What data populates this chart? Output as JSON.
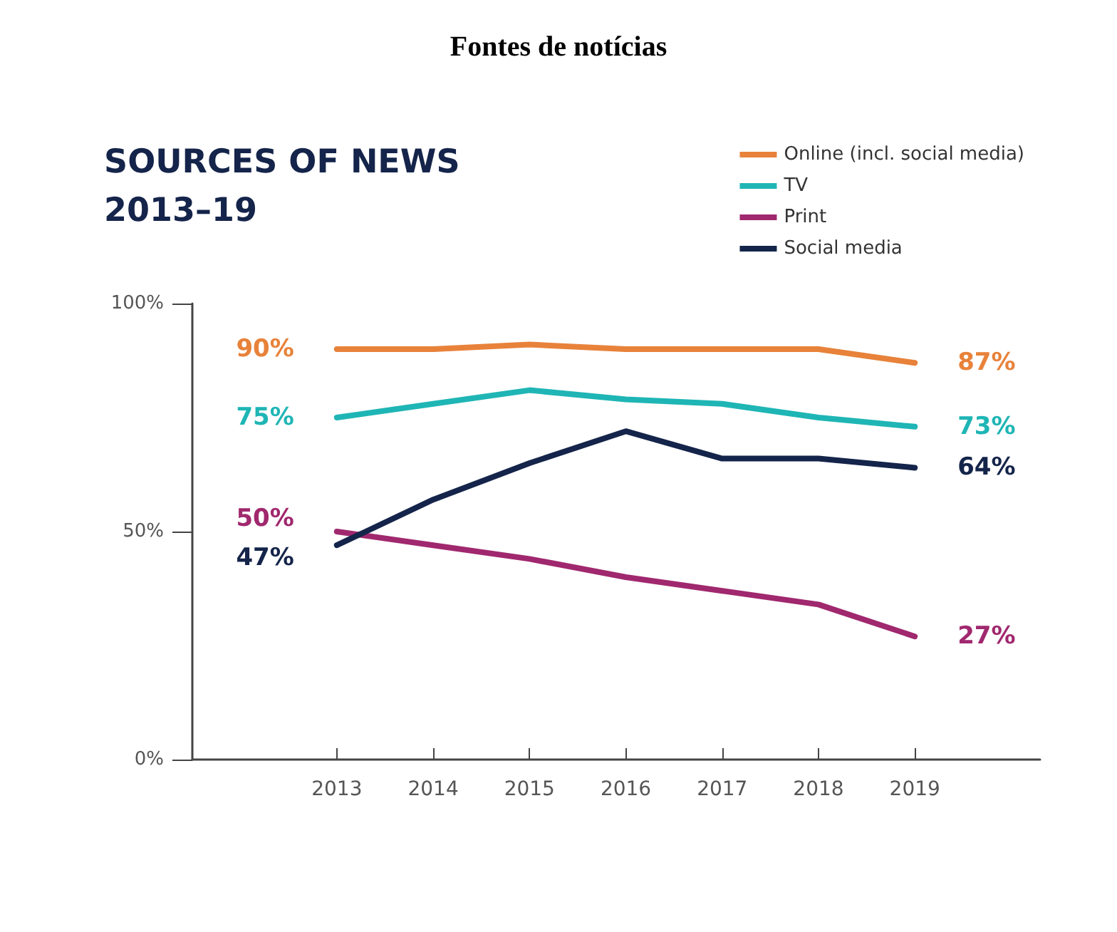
{
  "chart_data": {
    "type": "line",
    "title": "Fontes de notícias",
    "subtitle": "SOURCES OF NEWS\n2013–19",
    "categories": [
      "2013",
      "2014",
      "2015",
      "2016",
      "2017",
      "2018",
      "2019"
    ],
    "series": [
      {
        "name": "Online (incl. social media)",
        "color": "#e8823a",
        "values": [
          90,
          90,
          91,
          90,
          90,
          90,
          87
        ],
        "value_labels": [
          "90%",
          null,
          null,
          null,
          null,
          null,
          "87%"
        ]
      },
      {
        "name": "TV",
        "color": "#1fb5b5",
        "values": [
          75,
          78,
          81,
          79,
          78,
          75,
          73
        ],
        "value_labels": [
          "75%",
          null,
          null,
          null,
          null,
          null,
          "73%"
        ]
      },
      {
        "name": "Print",
        "color": "#a0286e",
        "values": [
          50,
          47,
          44,
          40,
          37,
          34,
          27
        ],
        "value_labels": [
          "50%",
          null,
          null,
          null,
          null,
          null,
          "27%"
        ]
      },
      {
        "name": "Social media",
        "color": "#14244a",
        "values": [
          47,
          57,
          65,
          72,
          66,
          66,
          64
        ],
        "value_labels": [
          "47%",
          null,
          null,
          null,
          null,
          null,
          "64%"
        ]
      }
    ],
    "ylim": [
      0,
      100
    ],
    "yticks": [
      {
        "value": 0,
        "label": "0%"
      },
      {
        "value": 50,
        "label": "50%"
      },
      {
        "value": 100,
        "label": "100%"
      }
    ],
    "grid": false,
    "legend": "top right",
    "marker": "none",
    "line_style": "solid"
  }
}
